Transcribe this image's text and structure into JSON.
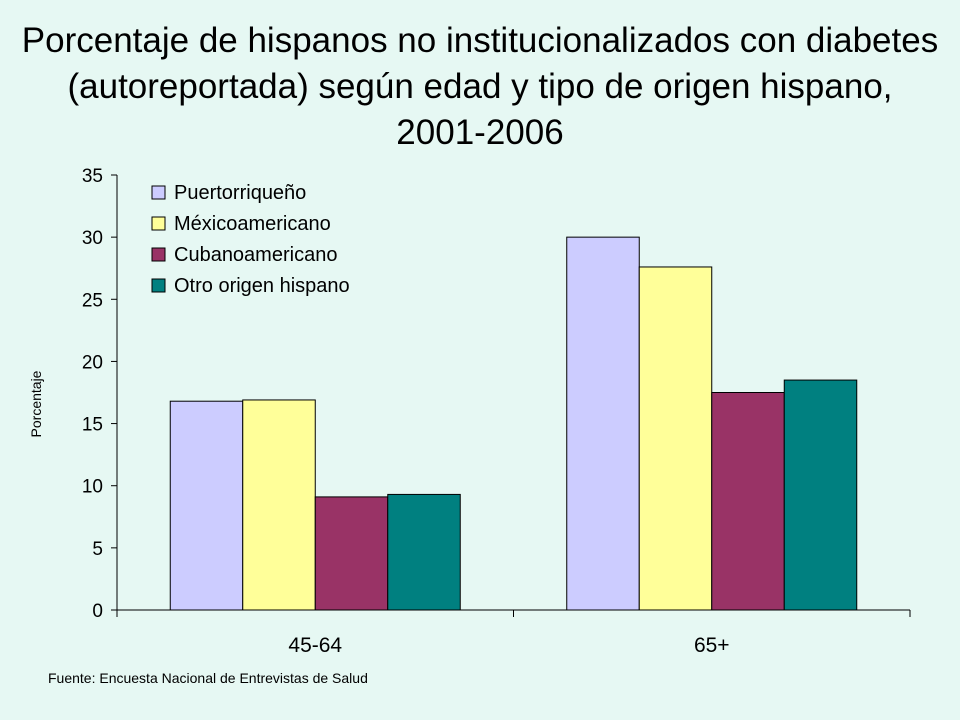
{
  "title": "Porcentaje de hispanos no institucionalizados con diabetes (autoreportada) según edad y tipo de origen hispano, 2001-2006",
  "source": "Fuente: Encuesta Nacional de Entrevistas de Salud",
  "chart_data": {
    "type": "bar",
    "title": "Porcentaje de hispanos no institucionalizados con diabetes (autoreportada) según edad y tipo de origen hispano, 2001-2006",
    "xlabel": "",
    "ylabel": "Porcentaje",
    "ylim": [
      0,
      35
    ],
    "yticks": [
      0,
      5,
      10,
      15,
      20,
      25,
      30,
      35
    ],
    "grid": false,
    "legend_position": "top-left",
    "categories": [
      "45-64",
      "65+"
    ],
    "series": [
      {
        "name": "Puertorriqueño",
        "color": "#ccccff",
        "values": [
          16.8,
          30.0
        ]
      },
      {
        "name": "Méxicoamericano",
        "color": "#ffff99",
        "values": [
          16.9,
          27.6
        ]
      },
      {
        "name": "Cubanoamericano",
        "color": "#993366",
        "values": [
          9.1,
          17.5
        ]
      },
      {
        "name": "Otro origen hispano",
        "color": "#008080",
        "values": [
          9.3,
          18.5
        ]
      }
    ]
  }
}
